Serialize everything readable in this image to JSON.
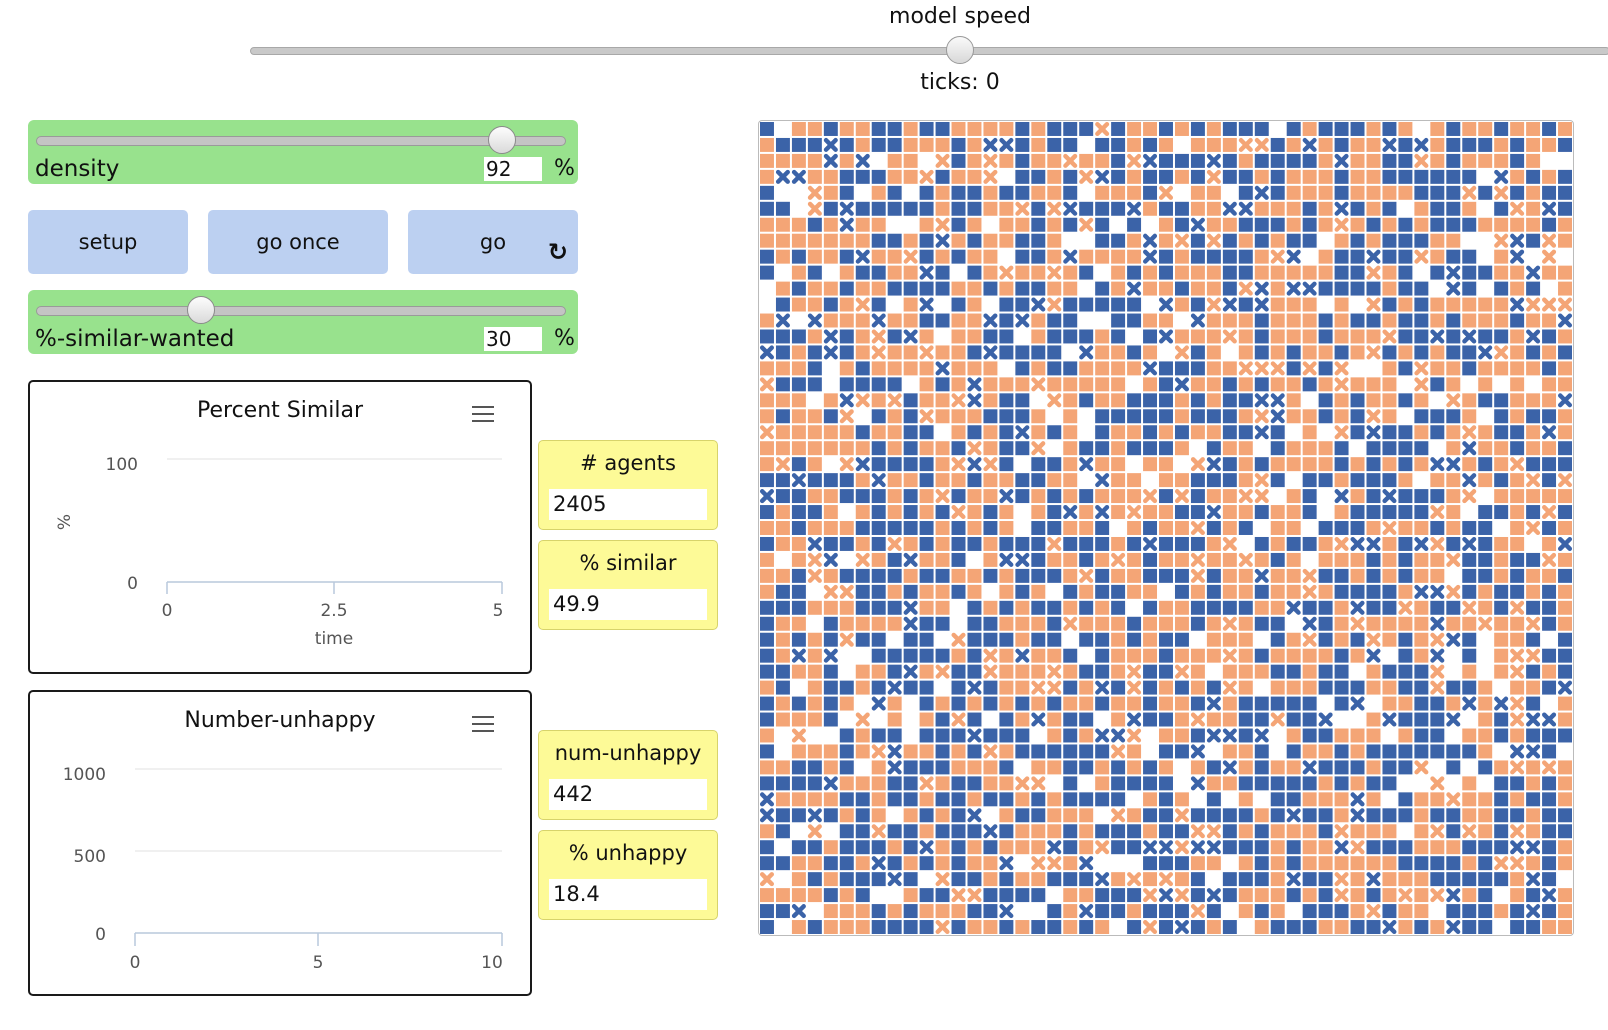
{
  "speed": {
    "label": "model speed",
    "value": 0.51,
    "ticks_label": "ticks: 0"
  },
  "density": {
    "label": "density",
    "value": "92",
    "unit": "%",
    "fraction": 0.9
  },
  "similar_wanted": {
    "label": "%-similar-wanted",
    "value": "30",
    "unit": "%",
    "fraction": 0.3
  },
  "buttons": {
    "setup": "setup",
    "go_once": "go once",
    "go": "go",
    "go_icon": "↻"
  },
  "plots": {
    "percent_similar": {
      "title": "Percent Similar",
      "ylabel": "%",
      "xlabel": "time",
      "y_ticks": [
        "100",
        "0"
      ],
      "x_ticks": [
        "0",
        "2.5",
        "5"
      ],
      "ylim": [
        0,
        100
      ],
      "xlim": [
        0,
        5
      ]
    },
    "number_unhappy": {
      "title": "Number-unhappy",
      "y_ticks": [
        "1000",
        "500",
        "0"
      ],
      "x_ticks": [
        "0",
        "5",
        "10"
      ],
      "ylim": [
        0,
        1000
      ],
      "xlim": [
        0,
        10
      ]
    }
  },
  "monitors": {
    "agents": {
      "label": "# agents",
      "value": "2405"
    },
    "similar": {
      "label": "% similar",
      "value": "49.9"
    },
    "num_unhappy": {
      "label": "num-unhappy",
      "value": "442"
    },
    "unhappy": {
      "label": "% unhappy",
      "value": "18.4"
    }
  },
  "world": {
    "grid": 51,
    "colors": {
      "blue": "#3b63a8",
      "orange": "#f4a576",
      "empty": "#ffffff"
    }
  }
}
